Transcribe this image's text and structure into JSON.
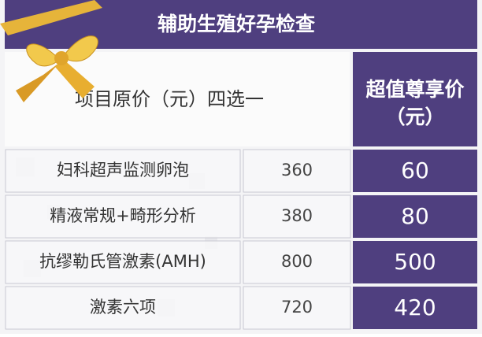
{
  "header": {
    "title": "辅助生殖好孕检查"
  },
  "table": {
    "header": [
      "项目原价（元）四选一",
      [
        "超值尊享价",
        "（元）"
      ]
    ],
    "rows": [
      [
        "妇科超声监测卵泡",
        360,
        60
      ],
      [
        "精液常规+畸形分析",
        380,
        80
      ],
      [
        "抗缪勒氏管激素(AMH)",
        800,
        500
      ],
      [
        "激素六项",
        720,
        420
      ]
    ]
  }
}
